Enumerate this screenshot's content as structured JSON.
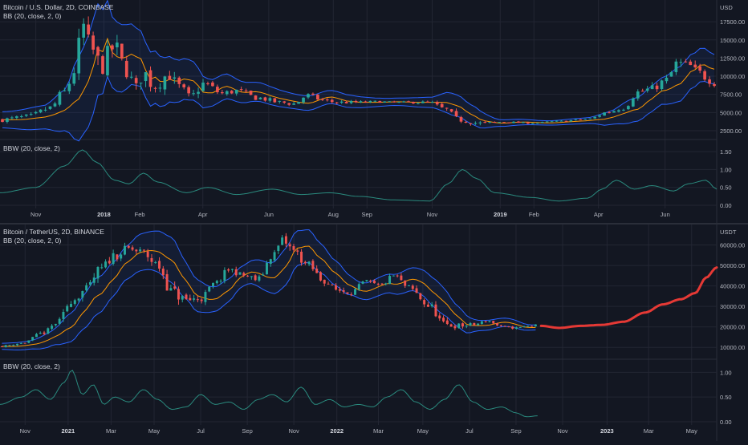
{
  "theme": {
    "bg": "#131722",
    "grid": "#232633",
    "text": "#b2b5be",
    "up": "#26a69a",
    "down": "#ef5350",
    "band": "#2962ff",
    "basis": "#ff9800",
    "bbw": "#2a8a7e",
    "forecast": "#e53935"
  },
  "top_panel": {
    "title": "Bitcoin / U.S. Dollar, 2D, COINBASE",
    "indicator": "BB (20, close, 2, 0)",
    "bbw_label": "BBW (20, close, 2)",
    "currency": "USD"
  },
  "bottom_panel": {
    "title": "Bitcoin / TetherUS, 2D, BINANCE",
    "indicator": "BB (20, close, 2, 0)",
    "bbw_label": "BBW (20, close, 2)",
    "currency": "USDT"
  },
  "chart_data": [
    {
      "type": "candlestick",
      "title": "Bitcoin / U.S. Dollar, 2D, COINBASE",
      "ylim": [
        1500,
        20500
      ],
      "y_ticks": [
        "2500.00",
        "5000.00",
        "7500.00",
        "10000.00",
        "12500.00",
        "15000.00",
        "17500.00"
      ],
      "y_tick_values": [
        2500,
        5000,
        7500,
        10000,
        12500,
        15000,
        17500
      ],
      "x_ticks": [
        "Nov",
        "2018",
        "Feb",
        "Apr",
        "Jun",
        "Aug",
        "Sep",
        "Nov",
        "2019",
        "Feb",
        "Apr",
        "Jun"
      ],
      "x_tick_bold": [
        false,
        true,
        false,
        false,
        false,
        false,
        false,
        false,
        true,
        false,
        false,
        false
      ],
      "x_tick_pos": [
        0.05,
        0.145,
        0.195,
        0.283,
        0.375,
        0.465,
        0.512,
        0.603,
        0.698,
        0.745,
        0.835,
        0.928
      ],
      "close_anchors": [
        [
          0,
          4000
        ],
        [
          0.04,
          4400
        ],
        [
          0.07,
          5600
        ],
        [
          0.09,
          7800
        ],
        [
          0.105,
          11000
        ],
        [
          0.115,
          17000
        ],
        [
          0.125,
          14000
        ],
        [
          0.14,
          11500
        ],
        [
          0.16,
          14000
        ],
        [
          0.175,
          11000
        ],
        [
          0.19,
          8200
        ],
        [
          0.2,
          10500
        ],
        [
          0.215,
          8700
        ],
        [
          0.235,
          10200
        ],
        [
          0.25,
          8500
        ],
        [
          0.265,
          7000
        ],
        [
          0.285,
          9000
        ],
        [
          0.31,
          7600
        ],
        [
          0.33,
          8000
        ],
        [
          0.36,
          7000
        ],
        [
          0.39,
          6400
        ],
        [
          0.41,
          6200
        ],
        [
          0.43,
          7400
        ],
        [
          0.45,
          6700
        ],
        [
          0.47,
          6400
        ],
        [
          0.5,
          6400
        ],
        [
          0.53,
          6500
        ],
        [
          0.55,
          6400
        ],
        [
          0.6,
          6400
        ],
        [
          0.62,
          5500
        ],
        [
          0.64,
          4000
        ],
        [
          0.67,
          3500
        ],
        [
          0.7,
          3700
        ],
        [
          0.74,
          3550
        ],
        [
          0.78,
          3800
        ],
        [
          0.82,
          4100
        ],
        [
          0.85,
          5100
        ],
        [
          0.87,
          5700
        ],
        [
          0.89,
          7800
        ],
        [
          0.91,
          8300
        ],
        [
          0.93,
          9500
        ],
        [
          0.945,
          11800
        ],
        [
          0.96,
          11500
        ],
        [
          0.975,
          10500
        ],
        [
          0.99,
          9500
        ],
        [
          1,
          9000
        ]
      ],
      "band_half_width_anchors": [
        [
          0,
          1100
        ],
        [
          0.06,
          1600
        ],
        [
          0.09,
          2800
        ],
        [
          0.11,
          5800
        ],
        [
          0.13,
          6500
        ],
        [
          0.16,
          4800
        ],
        [
          0.2,
          3800
        ],
        [
          0.26,
          2800
        ],
        [
          0.3,
          1800
        ],
        [
          0.36,
          1300
        ],
        [
          0.42,
          1000
        ],
        [
          0.47,
          900
        ],
        [
          0.55,
          500
        ],
        [
          0.6,
          700
        ],
        [
          0.63,
          1500
        ],
        [
          0.66,
          1300
        ],
        [
          0.7,
          450
        ],
        [
          0.76,
          300
        ],
        [
          0.82,
          400
        ],
        [
          0.85,
          900
        ],
        [
          0.88,
          1600
        ],
        [
          0.92,
          1800
        ],
        [
          0.95,
          2400
        ],
        [
          0.98,
          2300
        ],
        [
          1,
          2000
        ]
      ],
      "bbw": {
        "label": "BBW (20, close, 2)",
        "ylim": [
          0,
          1.75
        ],
        "y_ticks": [
          "0.00",
          "0.50",
          "1.00",
          "1.50"
        ],
        "y_tick_values": [
          0,
          0.5,
          1,
          1.5
        ],
        "anchors": [
          [
            0,
            0.35
          ],
          [
            0.05,
            0.5
          ],
          [
            0.09,
            1.1
          ],
          [
            0.115,
            1.55
          ],
          [
            0.135,
            1.2
          ],
          [
            0.16,
            0.7
          ],
          [
            0.18,
            0.6
          ],
          [
            0.2,
            0.9
          ],
          [
            0.22,
            0.65
          ],
          [
            0.26,
            0.35
          ],
          [
            0.29,
            0.5
          ],
          [
            0.33,
            0.3
          ],
          [
            0.38,
            0.45
          ],
          [
            0.42,
            0.3
          ],
          [
            0.46,
            0.35
          ],
          [
            0.5,
            0.25
          ],
          [
            0.55,
            0.15
          ],
          [
            0.6,
            0.12
          ],
          [
            0.625,
            0.6
          ],
          [
            0.645,
            1.0
          ],
          [
            0.665,
            0.75
          ],
          [
            0.69,
            0.35
          ],
          [
            0.74,
            0.22
          ],
          [
            0.78,
            0.12
          ],
          [
            0.82,
            0.2
          ],
          [
            0.84,
            0.45
          ],
          [
            0.86,
            0.7
          ],
          [
            0.885,
            0.45
          ],
          [
            0.91,
            0.55
          ],
          [
            0.94,
            0.4
          ],
          [
            0.96,
            0.6
          ],
          [
            0.985,
            0.7
          ],
          [
            1,
            0.45
          ]
        ]
      }
    },
    {
      "type": "candlestick",
      "title": "Bitcoin / TetherUS, 2D, BINANCE",
      "ylim": [
        5000,
        70000
      ],
      "y_ticks": [
        "10000.00",
        "20000.00",
        "30000.00",
        "40000.00",
        "50000.00",
        "60000.00"
      ],
      "y_tick_values": [
        10000,
        20000,
        30000,
        40000,
        50000,
        60000
      ],
      "x_ticks": [
        "Nov",
        "2021",
        "Mar",
        "May",
        "Jul",
        "Sep",
        "Nov",
        "2022",
        "Mar",
        "May",
        "Jul",
        "Sep",
        "Nov",
        "2023",
        "Mar",
        "May"
      ],
      "x_tick_bold": [
        false,
        true,
        false,
        false,
        false,
        false,
        false,
        true,
        false,
        false,
        false,
        false,
        false,
        true,
        false,
        false
      ],
      "x_tick_pos": [
        0.035,
        0.095,
        0.155,
        0.215,
        0.28,
        0.345,
        0.41,
        0.47,
        0.528,
        0.59,
        0.655,
        0.72,
        0.785,
        0.847,
        0.905,
        0.965
      ],
      "close_anchors": [
        [
          0,
          10500
        ],
        [
          0.03,
          12000
        ],
        [
          0.06,
          17000
        ],
        [
          0.08,
          22000
        ],
        [
          0.1,
          33000
        ],
        [
          0.12,
          38000
        ],
        [
          0.14,
          48000
        ],
        [
          0.16,
          55000
        ],
        [
          0.18,
          58000
        ],
        [
          0.2,
          56000
        ],
        [
          0.22,
          50000
        ],
        [
          0.24,
          37000
        ],
        [
          0.26,
          33000
        ],
        [
          0.28,
          34000
        ],
        [
          0.3,
          41000
        ],
        [
          0.32,
          48000
        ],
        [
          0.34,
          45000
        ],
        [
          0.36,
          43000
        ],
        [
          0.38,
          55000
        ],
        [
          0.395,
          62000
        ],
        [
          0.41,
          57000
        ],
        [
          0.43,
          50000
        ],
        [
          0.45,
          43000
        ],
        [
          0.47,
          38000
        ],
        [
          0.49,
          37000
        ],
        [
          0.51,
          42000
        ],
        [
          0.53,
          40000
        ],
        [
          0.55,
          45000
        ],
        [
          0.57,
          39000
        ],
        [
          0.6,
          30000
        ],
        [
          0.62,
          21000
        ],
        [
          0.64,
          20500
        ],
        [
          0.66,
          21000
        ],
        [
          0.68,
          23000
        ],
        [
          0.7,
          20000
        ],
        [
          0.72,
          19500
        ],
        [
          0.74,
          20500
        ],
        [
          0.75,
          21000
        ]
      ],
      "band_half_width_anchors": [
        [
          0,
          1500
        ],
        [
          0.04,
          2000
        ],
        [
          0.07,
          3500
        ],
        [
          0.1,
          7000
        ],
        [
          0.13,
          9000
        ],
        [
          0.17,
          8000
        ],
        [
          0.2,
          9000
        ],
        [
          0.24,
          11000
        ],
        [
          0.27,
          8000
        ],
        [
          0.3,
          6000
        ],
        [
          0.34,
          5000
        ],
        [
          0.37,
          7000
        ],
        [
          0.4,
          9000
        ],
        [
          0.43,
          8000
        ],
        [
          0.47,
          6000
        ],
        [
          0.5,
          4000
        ],
        [
          0.54,
          4500
        ],
        [
          0.57,
          5500
        ],
        [
          0.61,
          7000
        ],
        [
          0.64,
          5000
        ],
        [
          0.67,
          2500
        ],
        [
          0.71,
          2000
        ],
        [
          0.75,
          1200
        ]
      ],
      "forecast": {
        "color": "#e53935",
        "anchors": [
          [
            0.755,
            20500
          ],
          [
            0.78,
            19500
          ],
          [
            0.81,
            20500
          ],
          [
            0.84,
            21000
          ],
          [
            0.87,
            22500
          ],
          [
            0.9,
            27000
          ],
          [
            0.925,
            31000
          ],
          [
            0.95,
            33500
          ],
          [
            0.97,
            36500
          ],
          [
            0.985,
            44000
          ],
          [
            1,
            49000
          ]
        ]
      },
      "bbw": {
        "label": "BBW (20, close, 2)",
        "ylim": [
          0,
          1.2
        ],
        "y_ticks": [
          "0.00",
          "0.50",
          "1.00"
        ],
        "y_tick_values": [
          0,
          0.5,
          1
        ],
        "anchors": [
          [
            0,
            0.35
          ],
          [
            0.03,
            0.5
          ],
          [
            0.05,
            0.65
          ],
          [
            0.07,
            0.45
          ],
          [
            0.09,
            0.8
          ],
          [
            0.1,
            1.05
          ],
          [
            0.115,
            0.55
          ],
          [
            0.13,
            0.75
          ],
          [
            0.145,
            0.35
          ],
          [
            0.16,
            0.5
          ],
          [
            0.18,
            0.4
          ],
          [
            0.2,
            0.65
          ],
          [
            0.22,
            0.45
          ],
          [
            0.24,
            0.25
          ],
          [
            0.26,
            0.3
          ],
          [
            0.28,
            0.55
          ],
          [
            0.3,
            0.35
          ],
          [
            0.32,
            0.4
          ],
          [
            0.34,
            0.25
          ],
          [
            0.36,
            0.45
          ],
          [
            0.38,
            0.55
          ],
          [
            0.4,
            0.4
          ],
          [
            0.42,
            0.7
          ],
          [
            0.44,
            0.35
          ],
          [
            0.46,
            0.45
          ],
          [
            0.48,
            0.3
          ],
          [
            0.5,
            0.35
          ],
          [
            0.52,
            0.3
          ],
          [
            0.54,
            0.5
          ],
          [
            0.56,
            0.65
          ],
          [
            0.58,
            0.4
          ],
          [
            0.6,
            0.25
          ],
          [
            0.62,
            0.45
          ],
          [
            0.64,
            0.75
          ],
          [
            0.66,
            0.4
          ],
          [
            0.68,
            0.25
          ],
          [
            0.7,
            0.3
          ],
          [
            0.72,
            0.18
          ],
          [
            0.735,
            0.1
          ],
          [
            0.75,
            0.12
          ]
        ]
      }
    }
  ]
}
